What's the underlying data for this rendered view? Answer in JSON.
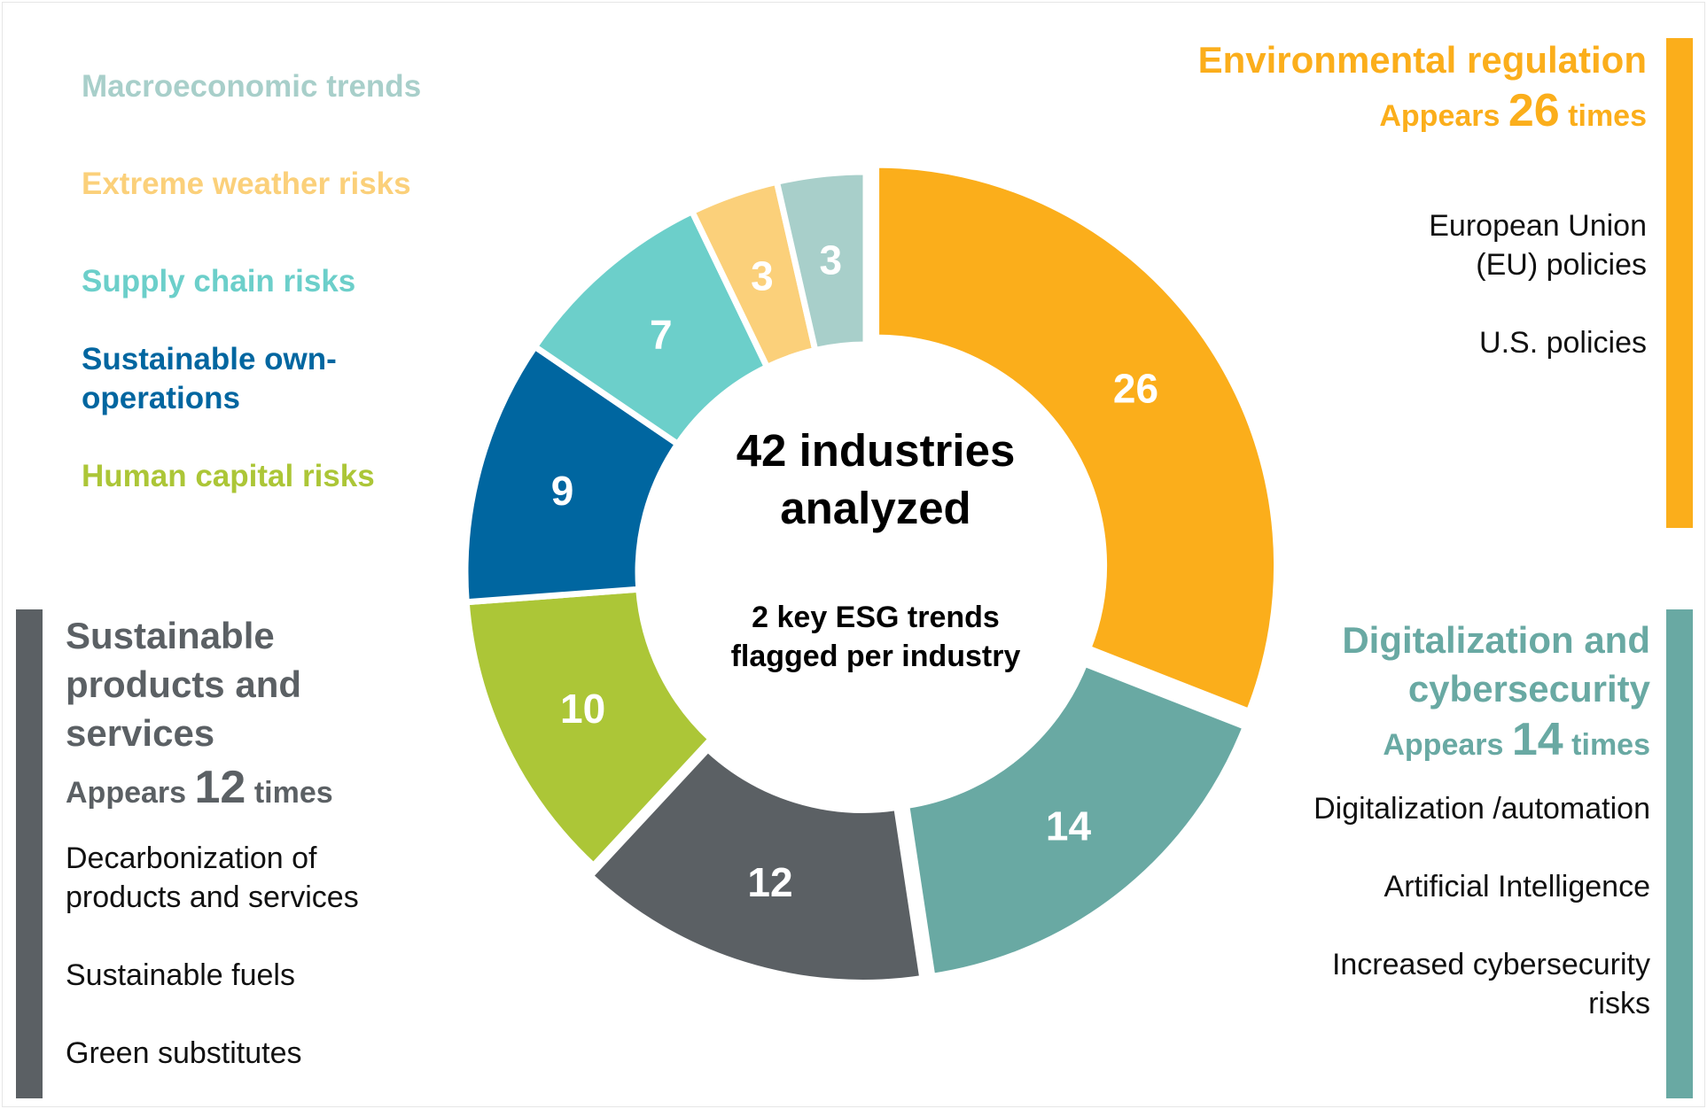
{
  "chart_data": {
    "type": "pie",
    "variant": "donut",
    "center_title": "42 industries analyzed",
    "center_subtitle": "2 key ESG trends flagged per industry",
    "categories": [
      "Environmental regulation",
      "Digitalization and cybersecurity",
      "Sustainable products and services",
      "Human capital risks",
      "Sustainable own-operations",
      "Supply chain risks",
      "Extreme weather risks",
      "Macroeconomic trends"
    ],
    "values": [
      26,
      14,
      12,
      10,
      9,
      7,
      3,
      3
    ],
    "colors": [
      "#fbae1b",
      "#69a9a3",
      "#5b6064",
      "#acc637",
      "#0066a0",
      "#6ccfca",
      "#fbd07a",
      "#a8cfca"
    ],
    "legend": [
      {
        "label": "Macroeconomic trends",
        "color": "#a8cfca"
      },
      {
        "label": "Extreme weather risks",
        "color": "#fbd07a"
      },
      {
        "label": "Supply chain risks",
        "color": "#6ccfca"
      },
      {
        "label": "Sustainable own-operations",
        "color": "#0066a0"
      },
      {
        "label": "Human capital risks",
        "color": "#acc637"
      }
    ],
    "legend_placement": "top-left"
  },
  "callouts": {
    "env": {
      "title": "Environmental regulation",
      "appears_pre": "Appears",
      "count": "26",
      "appears_post": "times",
      "items": [
        "European Union (EU) policies",
        "U.S. policies"
      ]
    },
    "digi": {
      "title": "Digitalization and cybersecurity",
      "appears_pre": "Appears",
      "count": "14",
      "appears_post": "times",
      "items": [
        "Digitalization /automation",
        "Artificial Intelligence",
        "Increased cybersecurity risks"
      ]
    },
    "sust": {
      "title": "Sustainable products and services",
      "appears_pre": "Appears",
      "count": "12",
      "appears_post": "times",
      "items": [
        "Decarbonization of products and services",
        "Sustainable fuels",
        "Green substitutes"
      ]
    }
  }
}
